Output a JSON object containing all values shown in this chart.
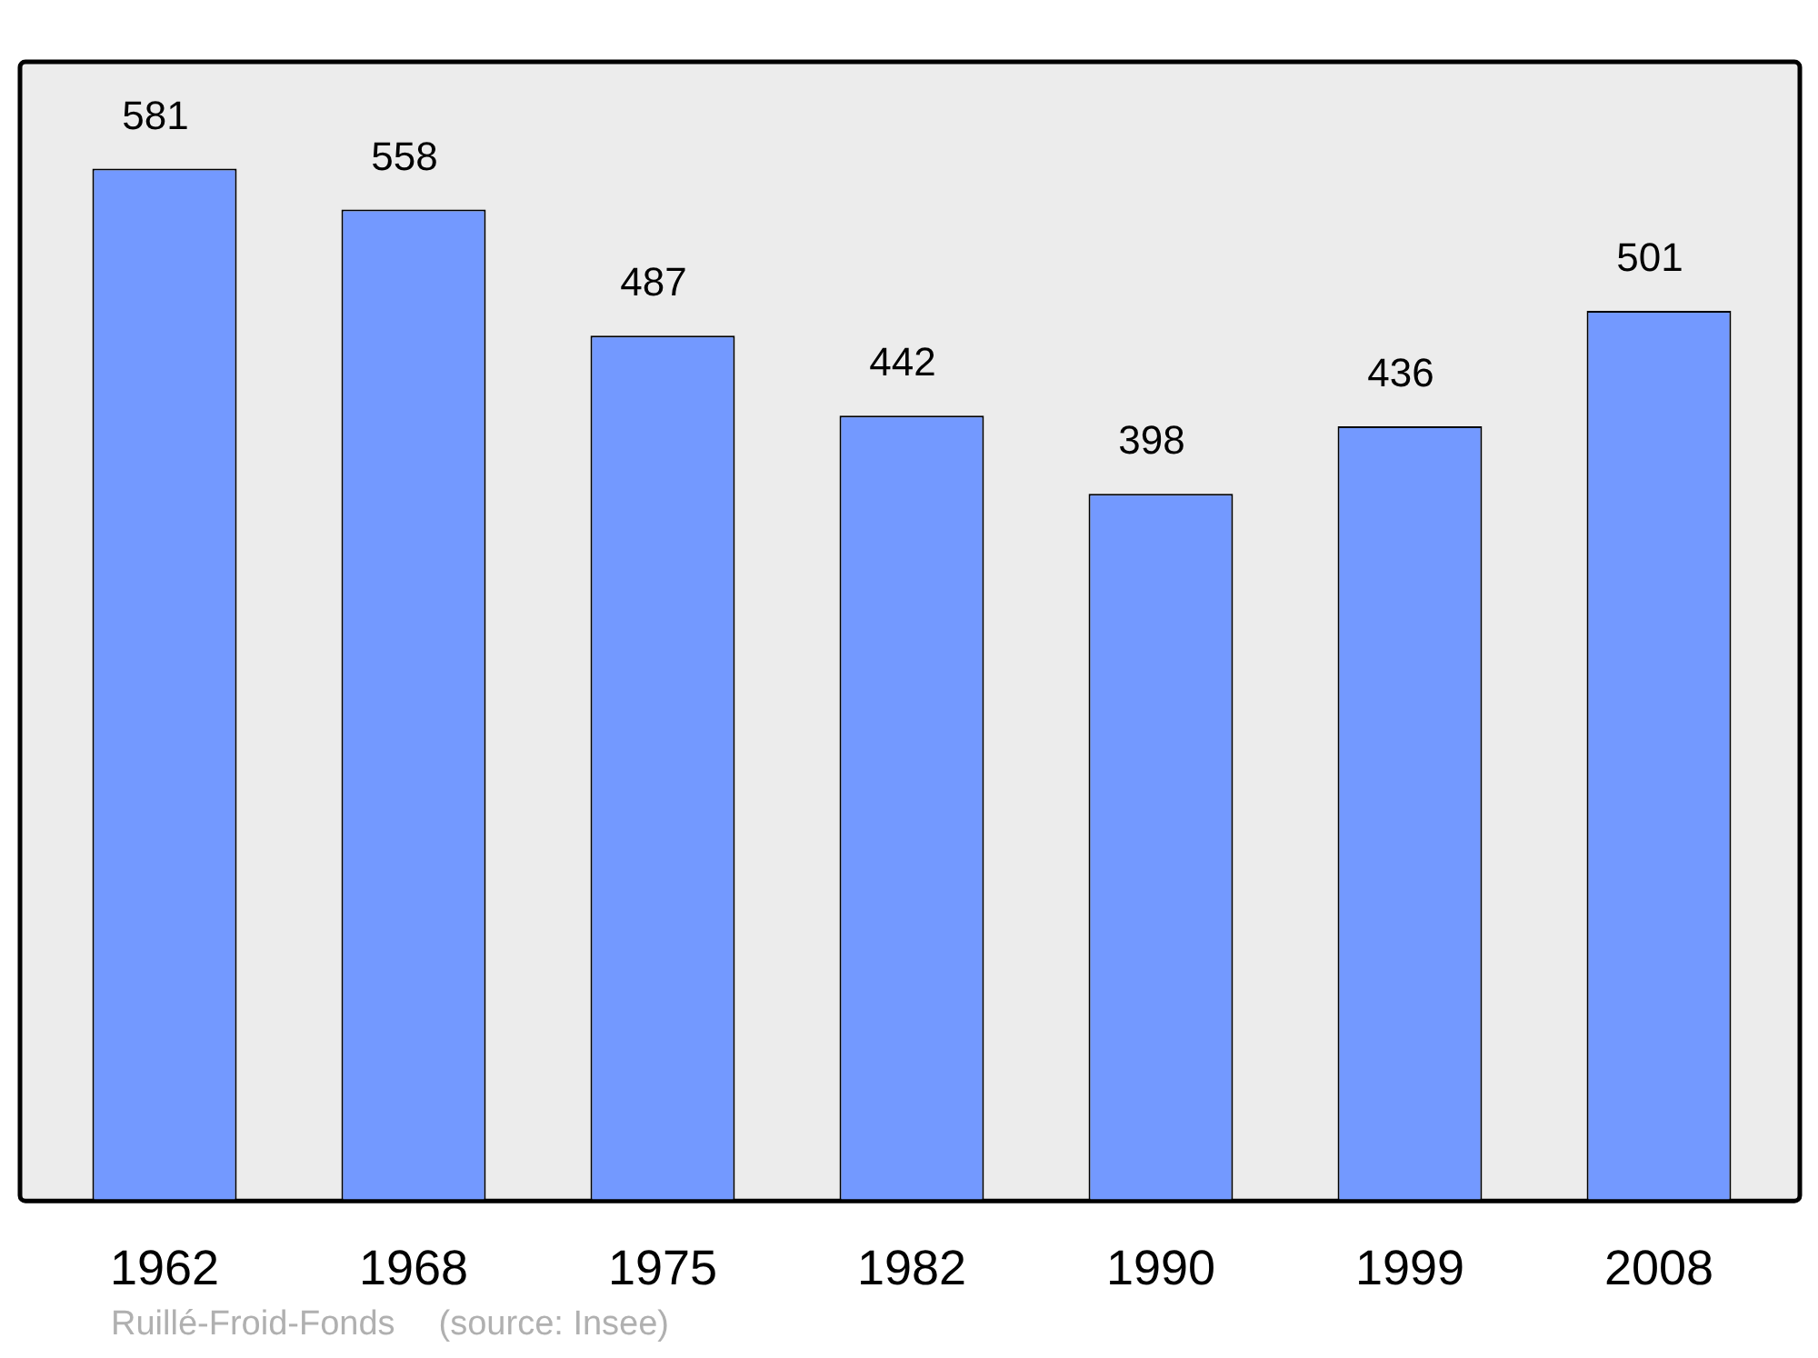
{
  "chart_data": {
    "type": "bar",
    "categories": [
      "1962",
      "1968",
      "1975",
      "1982",
      "1990",
      "1999",
      "2008"
    ],
    "values": [
      581,
      558,
      487,
      442,
      398,
      436,
      501
    ],
    "color": "#7399ff",
    "data_labels": true,
    "grid": false,
    "legend": false,
    "annotations": [
      "Ruillé-Froid-Fonds",
      "(source: Insee)"
    ]
  }
}
